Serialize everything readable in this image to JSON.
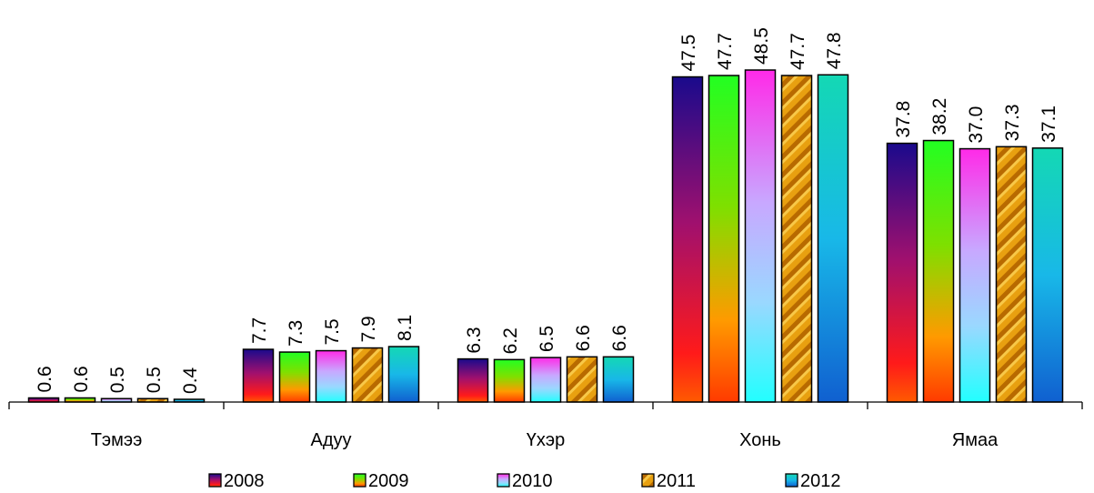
{
  "chart_data": {
    "type": "bar",
    "categories": [
      "Тэмээ",
      "Адуу",
      "Үхэр",
      "Хонь",
      "Ямаа"
    ],
    "series": [
      {
        "name": "2008",
        "values": [
          0.6,
          7.7,
          6.3,
          47.5,
          37.8
        ]
      },
      {
        "name": "2009",
        "values": [
          0.6,
          7.3,
          6.2,
          47.7,
          38.2
        ]
      },
      {
        "name": "2010",
        "values": [
          0.5,
          7.5,
          6.5,
          48.5,
          37.0
        ]
      },
      {
        "name": "2011",
        "values": [
          0.5,
          7.9,
          6.6,
          47.7,
          37.3
        ]
      },
      {
        "name": "2012",
        "values": [
          0.4,
          8.1,
          6.6,
          47.8,
          37.1
        ]
      }
    ],
    "data_labels": [
      [
        "0.6",
        "7.7",
        "6.3",
        "47.5",
        "37.8"
      ],
      [
        "0.6",
        "7.3",
        "6.2",
        "47.7",
        "38.2"
      ],
      [
        "0.5",
        "7.5",
        "6.5",
        "48.5",
        "37.0"
      ],
      [
        "0.5",
        "7.9",
        "6.6",
        "47.7",
        "37.3"
      ],
      [
        "0.4",
        "8.1",
        "6.6",
        "47.8",
        "37.1"
      ]
    ],
    "ylim": [
      0,
      48.5
    ],
    "grid": false,
    "legend_position": "bottom",
    "colors": {
      "2008": [
        "#1a0a8c",
        "#a0106e",
        "#ff1a1a",
        "#ff5a00"
      ],
      "2009": [
        "#22ff22",
        "#7ee000",
        "#ff9a00",
        "#ff3a00"
      ],
      "2010": [
        "#ff2ae8",
        "#c8a8ff",
        "#9ad8ff",
        "#22ffff"
      ],
      "2011": [
        "#c07400",
        "#f0b020"
      ],
      "2012": [
        "#14d8b4",
        "#18b8e8",
        "#1060d0"
      ]
    }
  }
}
